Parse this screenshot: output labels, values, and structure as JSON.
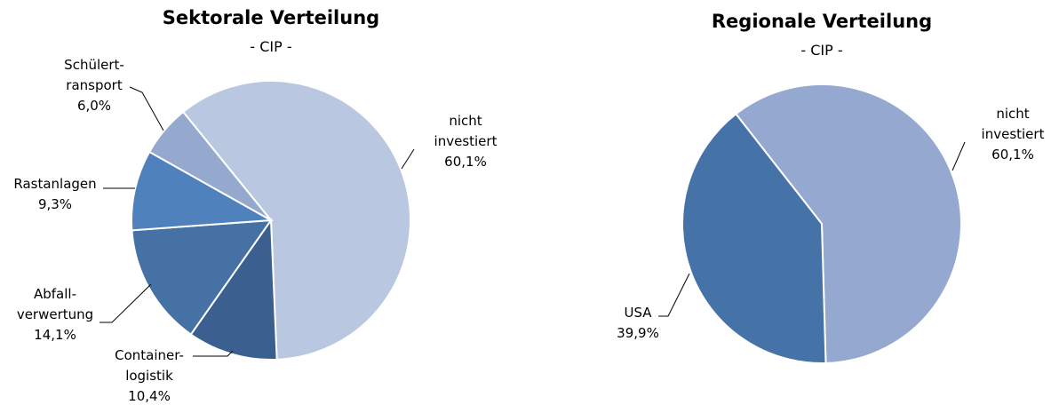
{
  "chart_data": [
    {
      "type": "pie",
      "title": "Sektorale Verteilung",
      "subtitle": "- CIP -",
      "categories": [
        "nicht\ninvestiert",
        "Container-\nlogistik",
        "Abfall-\nverwertung",
        "Rastanlagen",
        "Schülert-\nransport"
      ],
      "values": [
        60.1,
        10.4,
        14.1,
        9.3,
        6.0
      ],
      "value_labels": [
        "60,1%",
        "10,4%",
        "14,1%",
        "9,3%",
        "6,0%"
      ],
      "colors": [
        "#b9c7e0",
        "#3b5f8e",
        "#4571a5",
        "#4f81bd",
        "#95a9cf"
      ]
    },
    {
      "type": "pie",
      "title": "Regionale Verteilung",
      "subtitle": "- CIP -",
      "categories": [
        "nicht\ninvestiert",
        "USA"
      ],
      "values": [
        60.1,
        39.9
      ],
      "value_labels": [
        "60,1%",
        "39,9%"
      ],
      "colors": [
        "#95a9d0",
        "#4572a7"
      ]
    }
  ]
}
